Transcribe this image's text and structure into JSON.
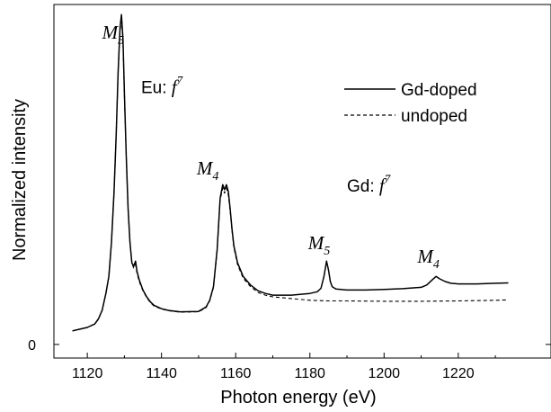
{
  "chart_data": {
    "type": "line",
    "title": "",
    "xlabel": "Photon energy (eV)",
    "ylabel": "Normalized intensity",
    "xlim": [
      1111,
      1245
    ],
    "ylim": [
      -0.04,
      1.0
    ],
    "x_ticks": [
      1120,
      1140,
      1160,
      1180,
      1200,
      1220
    ],
    "x_tick_labels": [
      "1120",
      "1140",
      "1160",
      "1180",
      "1200",
      "1220"
    ],
    "y_ticks": [
      0
    ],
    "y_tick_labels": [
      "0"
    ],
    "grid": false,
    "legend_position": "top-right",
    "series": [
      {
        "name": "Gd-doped",
        "style": "solid",
        "color": "#000000",
        "x": [
          1116,
          1118,
          1120,
          1122,
          1123,
          1124,
          1125,
          1125.8,
          1126.5,
          1127.2,
          1127.8,
          1128.3,
          1128.8,
          1129.2,
          1129.6,
          1130,
          1130.5,
          1131,
          1131.5,
          1132,
          1132.5,
          1133,
          1133.4,
          1134,
          1135,
          1136,
          1137,
          1138,
          1140,
          1142,
          1145,
          1150,
          1152,
          1153,
          1154,
          1155,
          1155.8,
          1156.5,
          1157,
          1157.5,
          1158,
          1158.5,
          1159,
          1159.5,
          1160.5,
          1162,
          1164,
          1166,
          1168,
          1170,
          1175,
          1180,
          1182,
          1183,
          1183.8,
          1184.5,
          1185,
          1185.5,
          1186,
          1187,
          1190,
          1195,
          1200,
          1205,
          1210,
          1211.5,
          1213,
          1214,
          1215,
          1216.5,
          1218,
          1220,
          1225,
          1230,
          1233.5
        ],
        "values": [
          0.04,
          0.045,
          0.05,
          0.06,
          0.075,
          0.1,
          0.15,
          0.2,
          0.3,
          0.45,
          0.62,
          0.8,
          0.93,
          0.97,
          0.9,
          0.74,
          0.55,
          0.4,
          0.3,
          0.24,
          0.23,
          0.245,
          0.215,
          0.19,
          0.16,
          0.14,
          0.125,
          0.115,
          0.105,
          0.1,
          0.096,
          0.097,
          0.11,
          0.13,
          0.17,
          0.28,
          0.43,
          0.47,
          0.455,
          0.47,
          0.45,
          0.4,
          0.34,
          0.29,
          0.24,
          0.2,
          0.175,
          0.158,
          0.15,
          0.145,
          0.145,
          0.15,
          0.155,
          0.165,
          0.2,
          0.245,
          0.22,
          0.185,
          0.17,
          0.163,
          0.16,
          0.16,
          0.162,
          0.164,
          0.168,
          0.175,
          0.19,
          0.2,
          0.193,
          0.185,
          0.18,
          0.178,
          0.178,
          0.18,
          0.181
        ]
      },
      {
        "name": "undoped",
        "style": "dashed",
        "color": "#000000",
        "x": [
          1116,
          1118,
          1120,
          1122,
          1123,
          1124,
          1125,
          1125.8,
          1126.5,
          1127.2,
          1127.8,
          1128.3,
          1128.8,
          1129.2,
          1129.6,
          1130,
          1130.5,
          1131,
          1131.5,
          1132,
          1132.5,
          1133,
          1133.4,
          1134,
          1135,
          1136,
          1137,
          1138,
          1140,
          1142,
          1145,
          1150,
          1152,
          1153,
          1154,
          1155,
          1155.8,
          1156.5,
          1157,
          1157.5,
          1158,
          1158.5,
          1159,
          1159.5,
          1160.5,
          1162,
          1164,
          1166,
          1168,
          1170,
          1175,
          1180,
          1185,
          1190,
          1200,
          1210,
          1220,
          1230,
          1233.5
        ],
        "values": [
          0.04,
          0.045,
          0.05,
          0.06,
          0.075,
          0.1,
          0.15,
          0.2,
          0.3,
          0.45,
          0.62,
          0.8,
          0.92,
          0.96,
          0.89,
          0.73,
          0.55,
          0.4,
          0.3,
          0.24,
          0.225,
          0.235,
          0.21,
          0.185,
          0.158,
          0.138,
          0.123,
          0.113,
          0.104,
          0.099,
          0.095,
          0.096,
          0.108,
          0.128,
          0.168,
          0.275,
          0.425,
          0.46,
          0.445,
          0.46,
          0.44,
          0.395,
          0.335,
          0.285,
          0.235,
          0.195,
          0.17,
          0.153,
          0.145,
          0.14,
          0.135,
          0.13,
          0.128,
          0.128,
          0.127,
          0.127,
          0.128,
          0.13,
          0.131
        ]
      }
    ],
    "annotations": [
      {
        "base": "M",
        "sub": "5",
        "x": 1124,
        "y": 0.9
      },
      {
        "base": "Eu: ",
        "f": "f",
        "sup": "7",
        "x": 1134.5,
        "y": 0.74
      },
      {
        "base": "M",
        "sub": "4",
        "x": 1149.5,
        "y": 0.5
      },
      {
        "base": "M",
        "sub": "5",
        "x": 1179.5,
        "y": 0.28
      },
      {
        "base": "Gd: ",
        "f": "f",
        "sup": "7",
        "x": 1190,
        "y": 0.45
      },
      {
        "base": "M",
        "sub": "4",
        "x": 1209,
        "y": 0.24
      }
    ]
  }
}
